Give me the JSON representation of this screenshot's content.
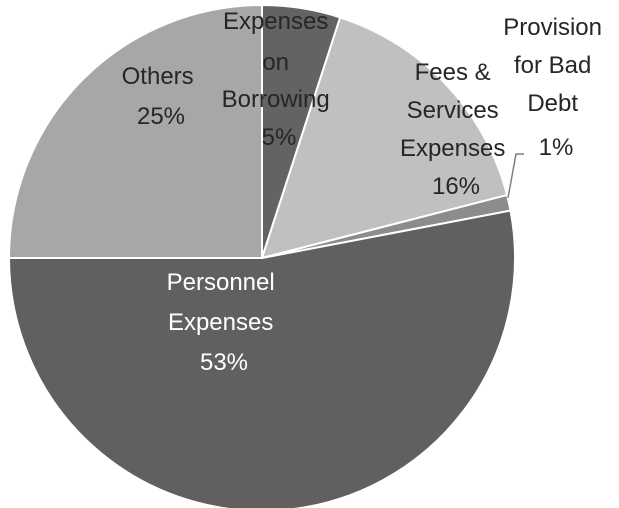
{
  "chart_data": {
    "type": "pie",
    "title": "",
    "slices": [
      {
        "name": "Expenses on Borrowing",
        "value": 5,
        "label_lines": [
          "Expenses",
          "on",
          "Borrowing",
          "5%"
        ],
        "color": "#636363",
        "text_color": "#262626"
      },
      {
        "name": "Fees & Services Expenses",
        "value": 16,
        "label_lines": [
          "Fees &",
          "Services",
          "Expenses",
          "16%"
        ],
        "color": "#c0c0c0",
        "text_color": "#262626"
      },
      {
        "name": "Provision for Bad Debt",
        "value": 1,
        "label_lines": [
          "Provision",
          "for Bad",
          "Debt",
          "1%"
        ],
        "color": "#8c8c8c",
        "text_color": "#262626"
      },
      {
        "name": "Personnel Expenses",
        "value": 53,
        "label_lines": [
          "Personnel",
          "Expenses",
          "53%"
        ],
        "color": "#606060",
        "text_color": "#ffffff"
      },
      {
        "name": "Others",
        "value": 25,
        "label_lines": [
          "Others",
          "25%"
        ],
        "color": "#a7a7a7",
        "text_color": "#262626"
      }
    ],
    "start_angle_deg": 0,
    "direction": "clockwise",
    "legend": "none"
  }
}
